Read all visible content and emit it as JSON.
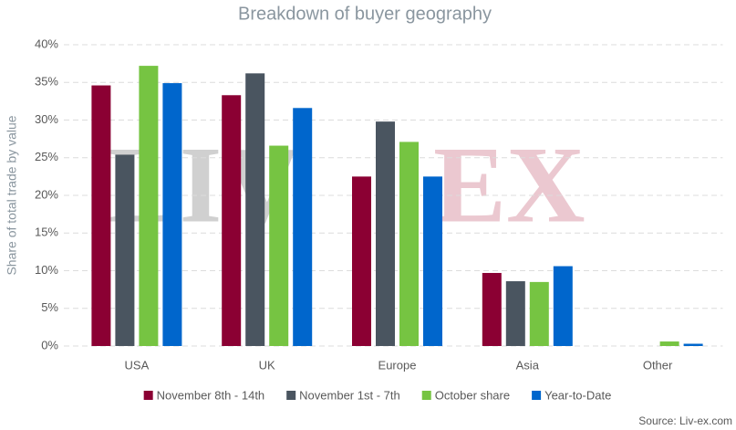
{
  "chart_data": {
    "type": "bar",
    "title": "Breakdown of buyer geography",
    "y_label": "Share of total trade by value",
    "source": "Source: Liv-ex.com",
    "watermark": [
      "LIV",
      "EX"
    ],
    "categories": [
      "USA",
      "UK",
      "Europe",
      "Asia",
      "Other"
    ],
    "series": [
      {
        "name": "November 8th - 14th",
        "color": "#8b0033",
        "values": [
          34.6,
          33.3,
          22.5,
          9.7,
          0
        ]
      },
      {
        "name": "November 1st - 7th",
        "color": "#4a5560",
        "values": [
          25.4,
          36.2,
          29.8,
          8.6,
          0
        ]
      },
      {
        "name": "October share",
        "color": "#76c442",
        "values": [
          37.2,
          26.6,
          27.1,
          8.5,
          0.6
        ]
      },
      {
        "name": "Year-to-Date",
        "color": "#0066cc",
        "values": [
          34.9,
          31.6,
          22.5,
          10.6,
          0.3
        ]
      }
    ],
    "ylim": [
      0,
      40
    ],
    "yticks": [
      {
        "value": 0,
        "label": "0%"
      },
      {
        "value": 5,
        "label": "5%"
      },
      {
        "value": 10,
        "label": "10%"
      },
      {
        "value": 15,
        "label": "15%"
      },
      {
        "value": 20,
        "label": "20%"
      },
      {
        "value": 25,
        "label": "25%"
      },
      {
        "value": 30,
        "label": "30%"
      },
      {
        "value": 35,
        "label": "35%"
      },
      {
        "value": 40,
        "label": "40%"
      }
    ],
    "grid": true
  }
}
